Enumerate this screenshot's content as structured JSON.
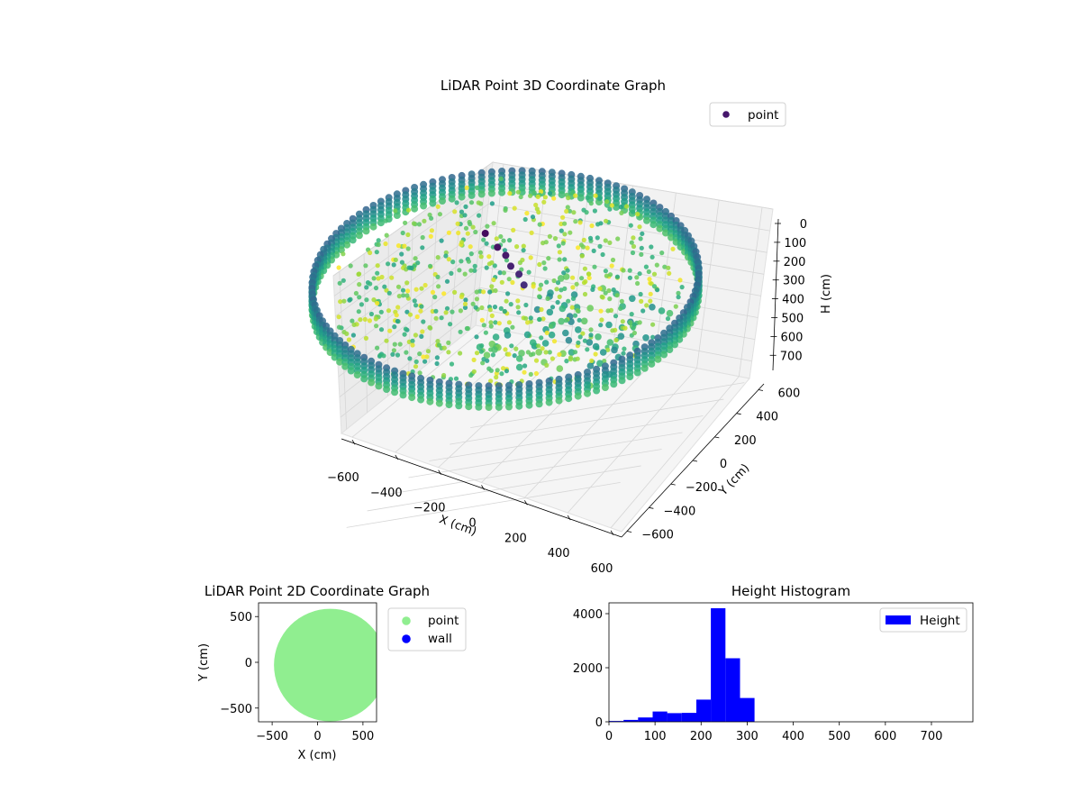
{
  "chart_data": [
    {
      "type": "scatter",
      "projection": "3d",
      "title": "LiDAR Point 3D Coordinate Graph",
      "xlabel": "X (cm)",
      "ylabel": "Y (cm)",
      "zlabel": "H (cm)",
      "xlim": [
        -650,
        650
      ],
      "ylim": [
        -650,
        650
      ],
      "zlim": [
        0,
        780
      ],
      "z_inverted": true,
      "xticks": [
        -600,
        -400,
        -200,
        0,
        200,
        400,
        600
      ],
      "yticks": [
        -600,
        -400,
        -200,
        0,
        200,
        400,
        600
      ],
      "zticks": [
        0,
        100,
        200,
        300,
        400,
        500,
        600,
        700
      ],
      "colormap": "viridis",
      "legend": {
        "placement": "upper-right",
        "entries": [
          {
            "label": "point",
            "color": "#46176c"
          }
        ]
      },
      "series": [
        {
          "name": "point",
          "wall_ring": {
            "center_x": 80,
            "center_y": 0,
            "radius": 520,
            "height_top": 230,
            "height_bottom": 340
          },
          "floor": {
            "center_x": 80,
            "center_y": 0,
            "radius": 480,
            "height_range": [
              220,
              320
            ]
          },
          "anomaly": {
            "x": [
              0,
              40,
              60,
              80,
              100,
              120
            ],
            "y": [
              20,
              20,
              30,
              25,
              35,
              30
            ],
            "h": [
              60,
              110,
              150,
              190,
              230,
              270
            ]
          }
        }
      ]
    },
    {
      "type": "scatter",
      "title": "LiDAR Point 2D Coordinate Graph",
      "xlabel": "X (cm)",
      "ylabel": "Y (cm)",
      "xlim": [
        -650,
        650
      ],
      "ylim": [
        -650,
        650
      ],
      "xticks": [
        -500,
        0,
        500
      ],
      "yticks": [
        -500,
        0,
        500
      ],
      "legend": {
        "placement": "outside-right",
        "entries": [
          {
            "label": "point",
            "color": "#90ee90"
          },
          {
            "label": "wall",
            "color": "#0000ff"
          }
        ]
      },
      "series": [
        {
          "name": "point",
          "color": "#90ee90",
          "disk": {
            "center_x": 140,
            "center_y": -30,
            "radius": 620
          }
        },
        {
          "name": "wall",
          "color": "#0000ff",
          "values": []
        }
      ]
    },
    {
      "type": "bar",
      "subtype": "histogram",
      "title": "Height Histogram",
      "xlim": [
        0,
        790
      ],
      "ylim": [
        0,
        4400
      ],
      "xticks": [
        0,
        100,
        200,
        300,
        400,
        500,
        600,
        700
      ],
      "yticks": [
        0,
        2000,
        4000
      ],
      "color": "#0000ff",
      "legend": {
        "placement": "upper-right",
        "entries": [
          {
            "label": "Height",
            "color": "#0000ff"
          }
        ]
      },
      "bin_edges": [
        0,
        31.6,
        63.2,
        94.8,
        126.4,
        158,
        189.6,
        221.2,
        252.8,
        284.4,
        316,
        347.6,
        379.2,
        410.8,
        442.4,
        474,
        505.6,
        537.2,
        568.8,
        600.4,
        632,
        663.6,
        695.2,
        726.8,
        758.4,
        790
      ],
      "values": [
        30,
        70,
        160,
        380,
        320,
        330,
        820,
        4200,
        2350,
        880,
        0,
        0,
        0,
        0,
        0,
        0,
        0,
        0,
        0,
        0,
        0,
        0,
        0,
        0,
        0
      ]
    }
  ]
}
